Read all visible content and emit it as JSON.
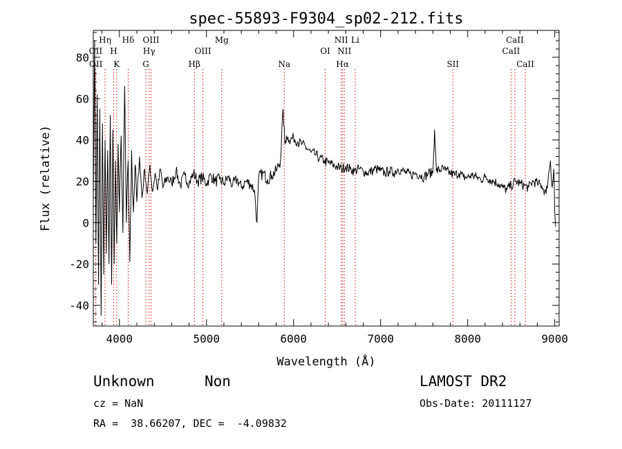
{
  "chart_data": {
    "type": "line",
    "title": "spec-55893-F9304_sp02-212.fits",
    "xlabel": "Wavelength (Å)",
    "ylabel": "Flux (relative)",
    "xlim": [
      3700,
      9050
    ],
    "ylim": [
      -50,
      93
    ],
    "xticks": [
      4000,
      5000,
      6000,
      7000,
      8000,
      9000
    ],
    "yticks": [
      -40,
      -20,
      0,
      20,
      40,
      60,
      80
    ],
    "grid": false,
    "line_color": "#000000",
    "marker_color": "#cc0000",
    "series": [
      {
        "x": [
          3700,
          3715,
          3730,
          3745,
          3760,
          3775,
          3790,
          3805,
          3820,
          3835,
          3850,
          3865,
          3880,
          3895,
          3910,
          3925,
          3940,
          3955,
          3970,
          3985,
          4000,
          4020,
          4040,
          4060,
          4080,
          4100,
          4120,
          4140,
          4160,
          4180,
          4200,
          4230,
          4260,
          4290,
          4320,
          4350,
          4380,
          4410,
          4440,
          4470,
          4500,
          4550,
          4600,
          4650,
          4700,
          4750,
          4800,
          4850,
          4900,
          4950,
          5000,
          5050,
          5100,
          5150,
          5200,
          5250,
          5300,
          5350,
          5400,
          5450,
          5500,
          5550,
          5580,
          5600,
          5650,
          5700,
          5750,
          5800,
          5850,
          5880,
          5900,
          5920,
          5950,
          6000,
          6050,
          6100,
          6150,
          6200,
          6250,
          6300,
          6350,
          6400,
          6450,
          6500,
          6550,
          6600,
          6650,
          6700,
          6750,
          6800,
          6850,
          6900,
          6950,
          7000,
          7050,
          7100,
          7150,
          7200,
          7250,
          7300,
          7350,
          7400,
          7450,
          7500,
          7550,
          7600,
          7620,
          7640,
          7700,
          7750,
          7800,
          7850,
          7900,
          7950,
          8000,
          8050,
          8100,
          8150,
          8200,
          8250,
          8300,
          8350,
          8400,
          8450,
          8500,
          8550,
          8600,
          8650,
          8700,
          8750,
          8800,
          8850,
          8900,
          8950,
          8970,
          8990,
          9000,
          9010
        ],
        "y": [
          10,
          88,
          -10,
          62,
          -30,
          55,
          -45,
          48,
          -25,
          40,
          -15,
          35,
          -20,
          52,
          -30,
          45,
          -20,
          30,
          -10,
          38,
          5,
          42,
          -5,
          66,
          0,
          30,
          -19,
          35,
          5,
          28,
          10,
          32,
          12,
          26,
          14,
          28,
          15,
          24,
          16,
          26,
          17,
          22,
          19,
          25,
          18,
          23,
          19,
          24,
          20,
          22,
          19,
          23,
          20,
          21,
          19,
          22,
          18,
          21,
          17,
          20,
          19,
          16,
          0,
          22,
          24,
          21,
          23,
          25,
          30,
          55,
          38,
          42,
          40,
          41,
          39,
          38,
          36,
          34,
          33,
          31,
          30,
          29,
          28,
          27,
          26,
          27,
          26,
          25,
          26,
          25,
          24,
          25,
          26,
          25,
          24,
          25,
          24,
          26,
          25,
          24,
          23,
          24,
          23,
          22,
          24,
          24,
          45,
          25,
          26,
          25,
          24,
          23,
          24,
          22,
          22,
          23,
          22,
          21,
          22,
          21,
          20,
          19,
          17,
          16,
          18,
          20,
          19,
          18,
          17,
          20,
          19,
          18,
          14,
          30,
          17,
          26,
          5,
          -2
        ]
      }
    ],
    "line_markers": [
      {
        "label": "OII",
        "x": 3727,
        "row": 2
      },
      {
        "label": "OII",
        "x": 3729,
        "row": 3
      },
      {
        "label": "Hη",
        "x": 3835,
        "row": 1
      },
      {
        "label": "H",
        "x": 3934,
        "row": 2
      },
      {
        "label": "K",
        "x": 3968,
        "row": 3
      },
      {
        "label": "Hδ",
        "x": 4101,
        "row": 1
      },
      {
        "label": "OIII",
        "x": 4363,
        "row": 1
      },
      {
        "label": "Hγ",
        "x": 4341,
        "row": 2
      },
      {
        "label": "G",
        "x": 4304,
        "row": 3
      },
      {
        "label": "Hβ",
        "x": 4861,
        "row": 3
      },
      {
        "label": "OIII",
        "x": 4959,
        "row": 2
      },
      {
        "label": "Mg",
        "x": 5175,
        "row": 1
      },
      {
        "label": "Na",
        "x": 5893,
        "row": 3
      },
      {
        "label": "OI",
        "x": 6364,
        "row": 2
      },
      {
        "label": "NII",
        "x": 6548,
        "row": 1
      },
      {
        "label": "NII",
        "x": 6583,
        "row": 2
      },
      {
        "label": "Hα",
        "x": 6563,
        "row": 3
      },
      {
        "label": "Li",
        "x": 6708,
        "row": 1
      },
      {
        "label": "SII",
        "x": 7830,
        "row": 3
      },
      {
        "label": "CaII",
        "x": 8498,
        "row": 2
      },
      {
        "label": "CaII",
        "x": 8542,
        "row": 1
      },
      {
        "label": "CaII",
        "x": 8662,
        "row": 3
      }
    ]
  },
  "info": {
    "class": "Unknown",
    "subclass": "Non",
    "survey": "LAMOST DR2",
    "cz": "cz = NaN",
    "obs_date": "Obs-Date: 20111127",
    "coords": "RA =  38.66207, DEC =  -4.09832"
  }
}
